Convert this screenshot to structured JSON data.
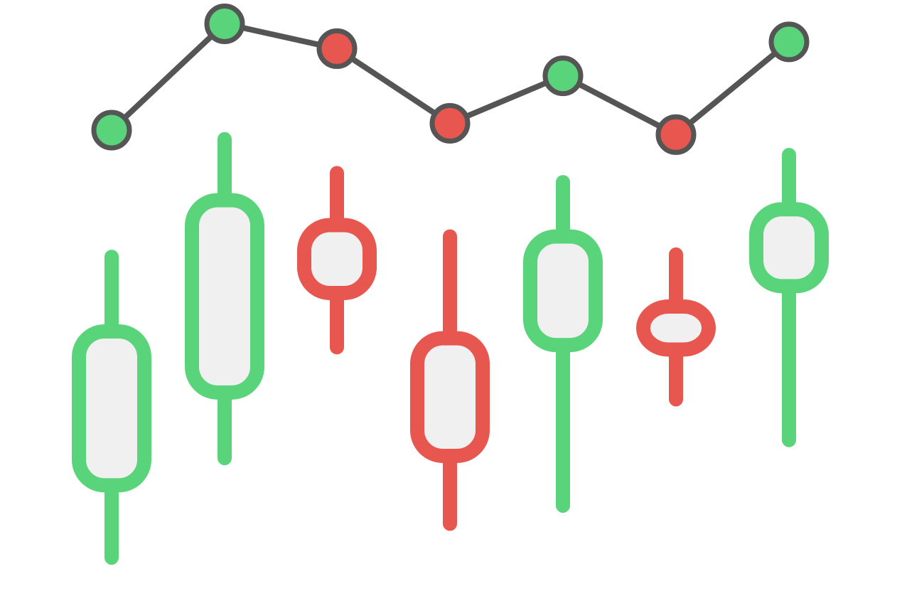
{
  "chart_data": {
    "type": "candlestick",
    "candles": [
      {
        "open": 1.8,
        "close": 8.6,
        "high": 11.9,
        "low": -1.4,
        "direction": "up"
      },
      {
        "open": 5.9,
        "close": 14.4,
        "high": 17.1,
        "low": 3.0,
        "direction": "up"
      },
      {
        "open": 13.3,
        "close": 10.3,
        "high": 15.6,
        "low": 7.9,
        "direction": "down"
      },
      {
        "open": 8.3,
        "close": 3.1,
        "high": 12.8,
        "low": 0.1,
        "direction": "down"
      },
      {
        "open": 8.0,
        "close": 12.8,
        "high": 15.2,
        "low": 0.9,
        "direction": "up"
      },
      {
        "open": 9.7,
        "close": 7.8,
        "high": 12.0,
        "low": 5.6,
        "direction": "down"
      },
      {
        "open": 10.6,
        "close": 14.0,
        "high": 16.4,
        "low": 3.8,
        "direction": "up"
      }
    ],
    "trend_line": [
      {
        "value": 17.5,
        "direction": "up"
      },
      {
        "value": 22.2,
        "direction": "up"
      },
      {
        "value": 21.1,
        "direction": "down"
      },
      {
        "value": 17.8,
        "direction": "down"
      },
      {
        "value": 19.9,
        "direction": "up"
      },
      {
        "value": 17.3,
        "direction": "down"
      },
      {
        "value": 21.4,
        "direction": "up"
      }
    ],
    "ylim": [
      -3,
      23
    ],
    "grid": false,
    "colors": {
      "up": "#5ad47a",
      "down": "#e8574f",
      "line": "#555555",
      "body_fill": "#f0f0f0"
    }
  }
}
